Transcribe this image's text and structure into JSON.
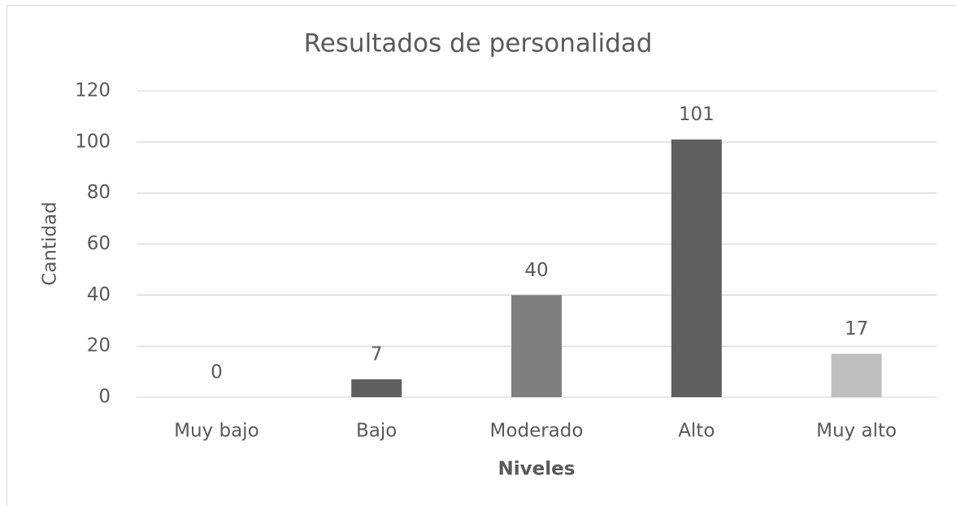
{
  "chart_data": {
    "type": "bar",
    "title": "Resultados de personalidad",
    "x_label": "Niveles",
    "y_label": "Cantidad",
    "categories": [
      "Muy bajo",
      "Bajo",
      "Moderado",
      "Alto",
      "Muy alto"
    ],
    "values": [
      0,
      7,
      40,
      101,
      17
    ],
    "colors": [
      "#a5a5a5",
      "#5f5f5f",
      "#7f7f7f",
      "#5f5f5f",
      "#bfbfbf"
    ],
    "ylim": [
      0,
      120
    ],
    "yticks": [
      0,
      20,
      40,
      60,
      80,
      100,
      120
    ],
    "grid": true
  }
}
